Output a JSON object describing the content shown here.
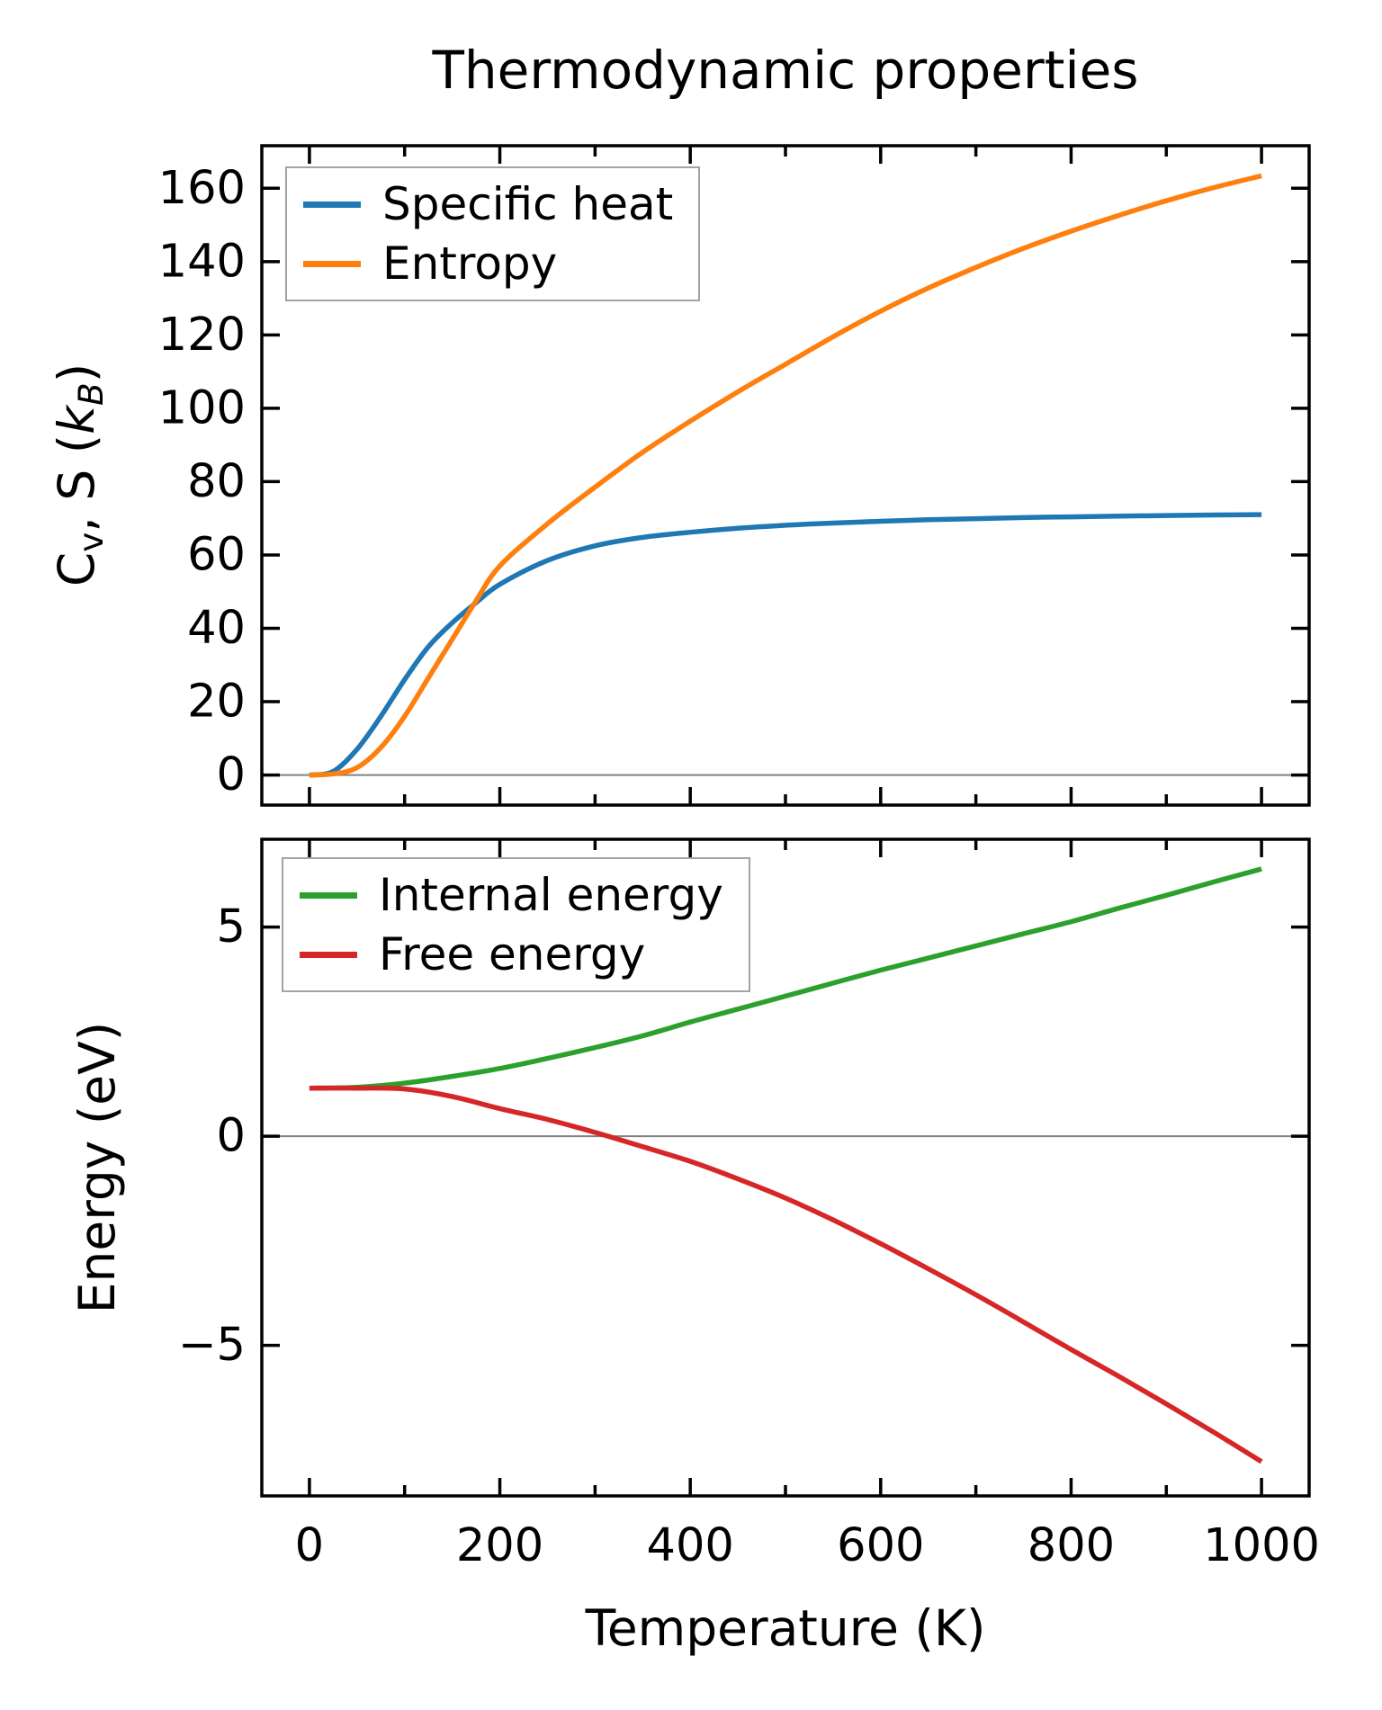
{
  "figure": {
    "background": "#ffffff",
    "ylabel_top_text": "Cv, S (kB)",
    "ylabel_top_segments": [
      {
        "t": "C"
      },
      {
        "t": "v",
        "style": "sub"
      },
      {
        "t": ", S ("
      },
      {
        "t": "k",
        "style": "italic"
      },
      {
        "t": "B",
        "style": "sub-italic"
      },
      {
        "t": ")"
      }
    ]
  },
  "chart_data": [
    {
      "type": "line",
      "title": "Thermodynamic properties",
      "xlabel": "",
      "ylabel": "Cv, S (kB)",
      "xlim": [
        -50,
        1050
      ],
      "ylim": [
        -8.2,
        171.6
      ],
      "xticks": [
        0,
        200,
        400,
        600,
        800,
        1000
      ],
      "xminor": [
        100,
        300,
        500,
        700,
        900
      ],
      "yticks": [
        0,
        20,
        40,
        60,
        80,
        100,
        120,
        140,
        160
      ],
      "show_x_tick_labels": false,
      "grid": false,
      "zero_line": true,
      "zero_line_color": "#808080",
      "legend_position": "upper left",
      "x": [
        0,
        25,
        50,
        75,
        100,
        125,
        150,
        175,
        200,
        250,
        300,
        350,
        400,
        450,
        500,
        550,
        600,
        650,
        700,
        750,
        800,
        850,
        900,
        950,
        1000
      ],
      "series": [
        {
          "name": "Specific heat",
          "color": "#1f77b4",
          "values": [
            0,
            1,
            7,
            16,
            26,
            35,
            41.5,
            47,
            52,
            58.5,
            62.5,
            64.8,
            66.2,
            67.3,
            68.1,
            68.7,
            69.2,
            69.6,
            69.9,
            70.2,
            70.4,
            70.6,
            70.75,
            70.9,
            71
          ]
        },
        {
          "name": "Entropy",
          "color": "#ff7f0e",
          "values": [
            0,
            0.3,
            2,
            7.5,
            16,
            26.5,
            37,
            47.5,
            57,
            68.5,
            78.5,
            88,
            96.5,
            104.5,
            112,
            119.5,
            126.5,
            132.8,
            138.4,
            143.6,
            148.3,
            152.6,
            156.6,
            160.2,
            163.4
          ]
        }
      ]
    },
    {
      "type": "line",
      "title": "",
      "xlabel": "Temperature (K)",
      "ylabel": "Energy (eV)",
      "xlim": [
        -50,
        1050
      ],
      "ylim": [
        -8.6,
        7.1
      ],
      "xticks": [
        0,
        200,
        400,
        600,
        800,
        1000
      ],
      "xminor": [
        100,
        300,
        500,
        700,
        900
      ],
      "yticks": [
        -5,
        0,
        5
      ],
      "show_x_tick_labels": true,
      "grid": false,
      "zero_line": true,
      "zero_line_color": "#808080",
      "legend_position": "upper left",
      "x": [
        0,
        50,
        100,
        150,
        200,
        250,
        300,
        350,
        400,
        450,
        500,
        550,
        600,
        650,
        700,
        750,
        800,
        850,
        900,
        950,
        1000
      ],
      "series": [
        {
          "name": "Internal energy",
          "color": "#2ca02c",
          "values": [
            1.15,
            1.17,
            1.27,
            1.43,
            1.62,
            1.86,
            2.12,
            2.4,
            2.73,
            3.04,
            3.35,
            3.66,
            3.97,
            4.26,
            4.55,
            4.84,
            5.13,
            5.45,
            5.76,
            6.08,
            6.39
          ]
        },
        {
          "name": "Free energy",
          "color": "#d62728",
          "values": [
            1.15,
            1.15,
            1.13,
            0.95,
            0.66,
            0.4,
            0.09,
            -0.25,
            -0.6,
            -1.02,
            -1.48,
            -2.0,
            -2.57,
            -3.17,
            -3.79,
            -4.44,
            -5.1,
            -5.74,
            -6.4,
            -7.08,
            -7.78
          ]
        }
      ]
    }
  ]
}
